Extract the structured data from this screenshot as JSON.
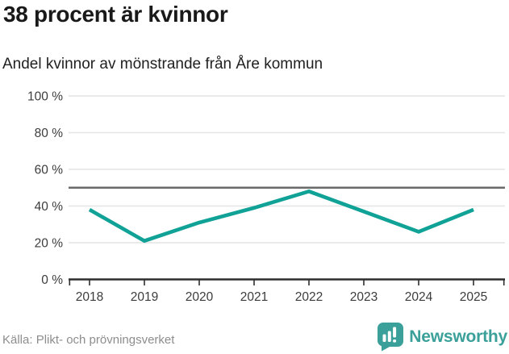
{
  "chart_data": {
    "type": "line",
    "title": "38 procent är kvinnor",
    "subtitle": "Andel kvinnor av mönstrande från Åre kommun",
    "x": [
      "2018",
      "2019",
      "2020",
      "2021",
      "2022",
      "2023",
      "2024",
      "2025"
    ],
    "series": [
      {
        "name": "Andel kvinnor",
        "values": [
          38,
          21,
          31,
          39,
          48,
          37,
          26,
          38
        ]
      }
    ],
    "ylim": [
      0,
      100
    ],
    "yticks": [
      0,
      20,
      40,
      60,
      80,
      100
    ],
    "ytick_suffix": " %",
    "reference_line": 50,
    "grid": true,
    "legend": "none",
    "colors": {
      "line": "#10a296",
      "grid": "#e4e4e4",
      "reference_line": "#6a6a6a",
      "axis": "#2e2e2e",
      "tick_label": "#3c3c3c"
    }
  },
  "footer": {
    "source": "Källa: Plikt- och prövningsverket",
    "brand": "Newsworthy",
    "logo_icon": "speech-bubble-bar-chart-icon",
    "logo_color": "#3ba099"
  }
}
